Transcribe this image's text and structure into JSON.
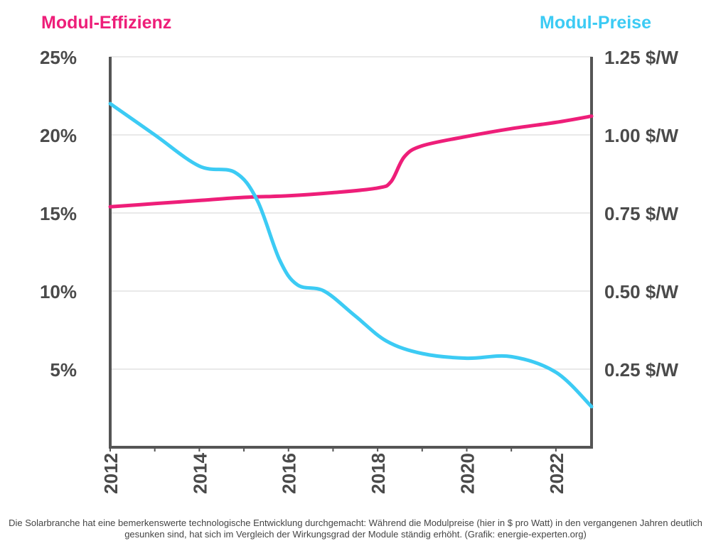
{
  "chart_data": {
    "type": "line",
    "title_left": "Modul-Effizienz",
    "title_right": "Modul-Preise",
    "left_axis": {
      "ticks": [
        5,
        10,
        15,
        20,
        25
      ],
      "tick_labels": [
        "5%",
        "10%",
        "15%",
        "20%",
        "25%"
      ],
      "range": [
        0,
        25
      ]
    },
    "right_axis": {
      "ticks": [
        0.25,
        0.5,
        0.75,
        1.0,
        1.25
      ],
      "tick_labels": [
        "0.25 $/W",
        "0.50 $/W",
        "0.75 $/W",
        "1.00 $/W",
        "1.25 $/W"
      ],
      "range": [
        0,
        1.25
      ]
    },
    "x_axis": {
      "range": [
        2012,
        2022.8
      ],
      "tick_labels": [
        "2012",
        "2014",
        "2016",
        "2018",
        "2020",
        "2022"
      ],
      "ticks": [
        2012,
        2014,
        2016,
        2018,
        2020,
        2022
      ]
    },
    "grid": true,
    "series": [
      {
        "name": "Modul-Effizienz",
        "axis": "left",
        "color": "#ee1e79",
        "x": [
          2012,
          2013,
          2014,
          2015,
          2016,
          2017,
          2018,
          2018.3,
          2018.6,
          2019,
          2020,
          2021,
          2022,
          2022.8
        ],
        "y": [
          15.4,
          15.6,
          15.8,
          16.0,
          16.1,
          16.3,
          16.6,
          17.0,
          18.6,
          19.3,
          19.9,
          20.4,
          20.8,
          21.2
        ]
      },
      {
        "name": "Modul-Preise",
        "axis": "right",
        "color": "#3ccbf4",
        "x": [
          2012,
          2013,
          2014,
          2014.8,
          2015.3,
          2015.8,
          2016.2,
          2016.8,
          2017.5,
          2018.2,
          2019,
          2020,
          2021,
          2022,
          2022.8
        ],
        "y": [
          1.1,
          1.0,
          0.9,
          0.88,
          0.79,
          0.6,
          0.52,
          0.5,
          0.42,
          0.34,
          0.3,
          0.285,
          0.29,
          0.24,
          0.13
        ]
      }
    ]
  },
  "caption": "Die Solarbranche hat eine bemerkenswerte technologische Entwicklung durchgemacht: Während die Modulpreise (hier in $ pro Watt) in den vergangenen Jahren deutlich gesunken sind, hat sich im Vergleich der Wirkungsgrad der Module ständig erhöht. (Grafik: energie-experten.org)"
}
